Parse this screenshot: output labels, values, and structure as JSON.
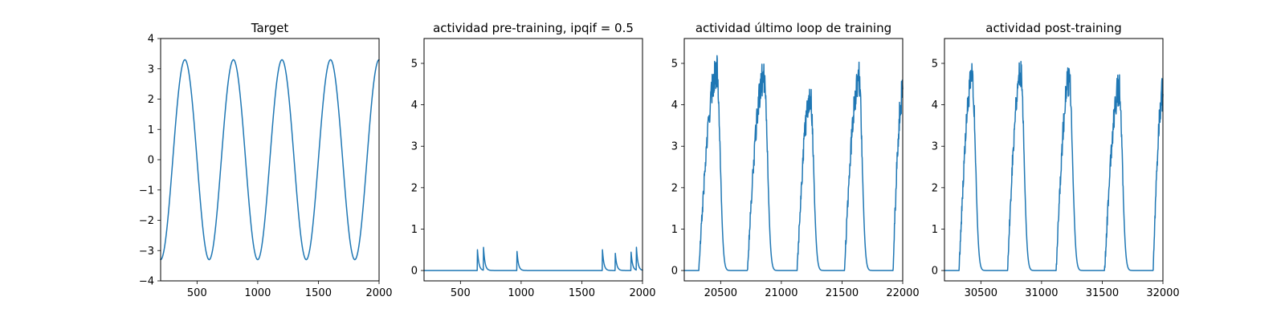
{
  "figure": {
    "background": "#ffffff",
    "line_color": "#1f77b4"
  },
  "chart_data": [
    {
      "type": "line",
      "title": "Target",
      "xlim": [
        200,
        2000
      ],
      "ylim": [
        -4,
        4
      ],
      "xticks": [
        500,
        1000,
        1500,
        2000
      ],
      "yticks": [
        -4,
        -3,
        -2,
        -1,
        0,
        1,
        2,
        3,
        4
      ],
      "xtick_labels": [
        "500",
        "1000",
        "1500",
        "2000"
      ],
      "ytick_labels": [
        "−4",
        "−3",
        "−2",
        "−1",
        "0",
        "1",
        "2",
        "3",
        "4"
      ],
      "series": [
        {
          "kind": "sinusoid",
          "amplitude": 3.3,
          "period": 400,
          "crest_x": 400,
          "x_range": [
            200,
            2000
          ]
        }
      ]
    },
    {
      "type": "line",
      "title": "actividad pre-training, ipqif = 0.5",
      "xlim": [
        200,
        2000
      ],
      "ylim": [
        -0.25,
        5.6
      ],
      "xticks": [
        500,
        1000,
        1500,
        2000
      ],
      "yticks": [
        0,
        1,
        2,
        3,
        4,
        5
      ],
      "xtick_labels": [
        "500",
        "1000",
        "1500",
        "2000"
      ],
      "ytick_labels": [
        "0",
        "1",
        "2",
        "3",
        "4",
        "5"
      ],
      "series": [
        {
          "kind": "spikes",
          "baseline": 0,
          "x_range": [
            200,
            2000
          ],
          "events": [
            {
              "x": 640,
              "peak": 0.5
            },
            {
              "x": 690,
              "peak": 0.55
            },
            {
              "x": 965,
              "peak": 0.5
            },
            {
              "x": 1670,
              "peak": 0.5
            },
            {
              "x": 1775,
              "peak": 0.45
            },
            {
              "x": 1905,
              "peak": 0.48
            },
            {
              "x": 1950,
              "peak": 0.55
            }
          ]
        }
      ]
    },
    {
      "type": "line",
      "title": "actividad último loop de training",
      "xlim": [
        20200,
        22000
      ],
      "ylim": [
        -0.25,
        5.6
      ],
      "xticks": [
        20500,
        21000,
        21500,
        22000
      ],
      "yticks": [
        0,
        1,
        2,
        3,
        4,
        5
      ],
      "xtick_labels": [
        "20500",
        "21000",
        "21500",
        "22000"
      ],
      "ytick_labels": [
        "0",
        "1",
        "2",
        "3",
        "4",
        "5"
      ],
      "series": [
        {
          "kind": "bursts",
          "baseline": 0,
          "x_range": [
            20200,
            22000
          ],
          "events": [
            {
              "start": 20320,
              "peak_x": 20470,
              "peak": 4.8
            },
            {
              "start": 20720,
              "peak_x": 20860,
              "peak": 4.7
            },
            {
              "start": 21130,
              "peak_x": 21240,
              "peak": 4.2
            },
            {
              "start": 21520,
              "peak_x": 21640,
              "peak": 4.6
            },
            {
              "start": 21920,
              "peak_x": 22000,
              "peak": 4.3
            }
          ]
        }
      ]
    },
    {
      "type": "line",
      "title": "actividad post-training",
      "xlim": [
        30200,
        32000
      ],
      "ylim": [
        -0.25,
        5.6
      ],
      "xticks": [
        30500,
        31000,
        31500,
        32000
      ],
      "yticks": [
        0,
        1,
        2,
        3,
        4,
        5
      ],
      "xtick_labels": [
        "30500",
        "31000",
        "31500",
        "32000"
      ],
      "ytick_labels": [
        "0",
        "1",
        "2",
        "3",
        "4",
        "5"
      ],
      "series": [
        {
          "kind": "bursts",
          "baseline": 0,
          "x_range": [
            30200,
            32000
          ],
          "events": [
            {
              "start": 30320,
              "peak_x": 30430,
              "peak": 4.6
            },
            {
              "start": 30720,
              "peak_x": 30830,
              "peak": 4.8
            },
            {
              "start": 31120,
              "peak_x": 31230,
              "peak": 4.6
            },
            {
              "start": 31520,
              "peak_x": 31640,
              "peak": 4.4
            },
            {
              "start": 31920,
              "peak_x": 32000,
              "peak": 4.3
            }
          ]
        }
      ]
    }
  ]
}
